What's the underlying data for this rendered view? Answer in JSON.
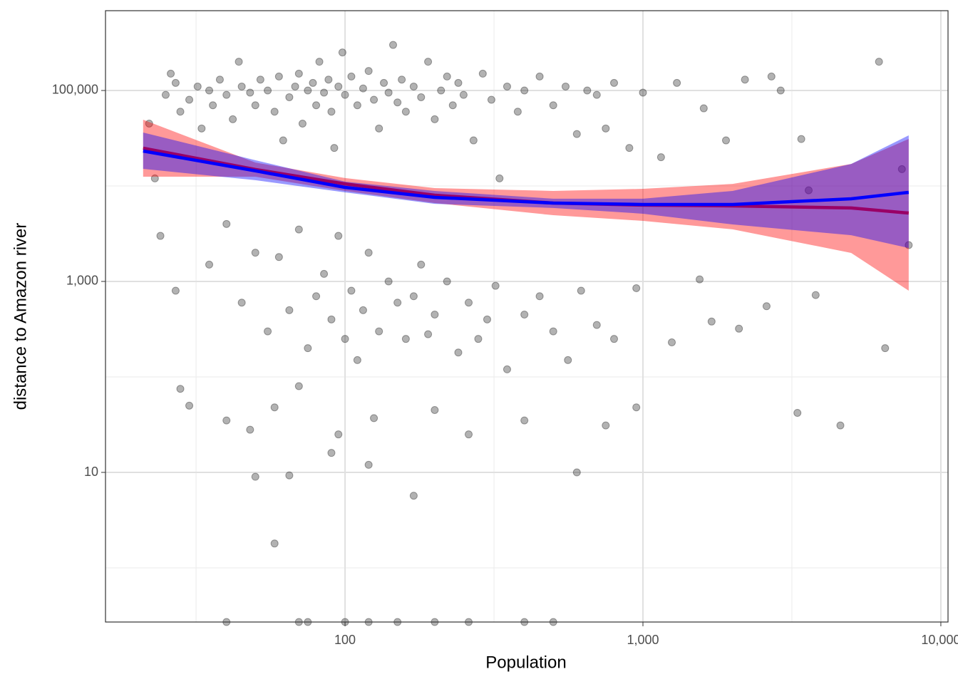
{
  "chart_data": {
    "type": "scatter",
    "x_label": "Population",
    "y_label": "distance to Amazon river",
    "log_x": true,
    "log_y": true,
    "grid": true,
    "xlim": [
      15.7,
      10570
    ],
    "ylim": [
      0.271,
      685000
    ],
    "xticks": [
      100,
      {
        "value": 1000,
        "label": "1,000"
      },
      {
        "value": 10000,
        "label": "10,000"
      }
    ],
    "yticks": [
      10,
      {
        "value": 1000,
        "label": "1,000"
      },
      {
        "value": 100000,
        "label": "100,000"
      }
    ],
    "series": [
      {
        "color": "#000000",
        "x": [
          22,
          23,
          25,
          26,
          27,
          28,
          30,
          32,
          33,
          35,
          36,
          38,
          40,
          42,
          44,
          45,
          48,
          50,
          52,
          55,
          58,
          60,
          62,
          65,
          68,
          70,
          72,
          75,
          78,
          80,
          82,
          85,
          88,
          90,
          92,
          95,
          98,
          100,
          105,
          110,
          115,
          120,
          125,
          130,
          135,
          140,
          145,
          150,
          155,
          160,
          170,
          180,
          190,
          200,
          210,
          220,
          230,
          240,
          250,
          270,
          290,
          310,
          330,
          350,
          380,
          400,
          450,
          500,
          550,
          600,
          650,
          700,
          750,
          800,
          900,
          1000,
          1150,
          1300,
          1600,
          1900,
          2200,
          2700,
          2900,
          3400,
          3600,
          6200,
          7400,
          24,
          27,
          35,
          40,
          45,
          50,
          55,
          60,
          65,
          70,
          75,
          80,
          85,
          90,
          95,
          100,
          105,
          110,
          115,
          120,
          130,
          140,
          150,
          160,
          170,
          180,
          190,
          200,
          220,
          240,
          260,
          280,
          300,
          320,
          350,
          400,
          450,
          500,
          560,
          620,
          700,
          800,
          950,
          1250,
          1550,
          1700,
          2100,
          2600,
          3300,
          3800,
          4600,
          6500,
          7800,
          28,
          30,
          40,
          48,
          50,
          58,
          65,
          70,
          90,
          95,
          120,
          125,
          170,
          200,
          260,
          400,
          600,
          750,
          950,
          58,
          40,
          70,
          75,
          100,
          120,
          150,
          200,
          260,
          400,
          500
        ],
        "values": [
          45000,
          12000,
          90000,
          150000,
          120000,
          60000,
          80000,
          110000,
          40000,
          100000,
          70000,
          130000,
          90000,
          50000,
          200000,
          110000,
          95000,
          70000,
          130000,
          100000,
          60000,
          140000,
          30000,
          85000,
          110000,
          150000,
          45000,
          100000,
          120000,
          70000,
          200000,
          95000,
          130000,
          60000,
          25000,
          110000,
          250000,
          90000,
          140000,
          70000,
          105000,
          160000,
          80000,
          40000,
          120000,
          95000,
          300000,
          75000,
          130000,
          60000,
          110000,
          85000,
          200000,
          50000,
          100000,
          140000,
          70000,
          120000,
          90000,
          30000,
          150000,
          80000,
          12000,
          110000,
          60000,
          100000,
          140000,
          70000,
          110000,
          35000,
          100000,
          90000,
          40000,
          120000,
          25000,
          95000,
          20000,
          120000,
          65000,
          30000,
          130000,
          140000,
          100000,
          31000,
          9000,
          200000,
          15000,
          3000,
          800,
          1500,
          4000,
          600,
          2000,
          300,
          1800,
          500,
          3500,
          200,
          700,
          1200,
          400,
          3000,
          250,
          800,
          150,
          500,
          2000,
          300,
          1000,
          600,
          250,
          700,
          1500,
          280,
          450,
          1000,
          180,
          600,
          250,
          400,
          900,
          120,
          450,
          700,
          300,
          150,
          800,
          350,
          250,
          850,
          230,
          1050,
          380,
          320,
          550,
          42,
          720,
          31,
          200,
          2400,
          75,
          50,
          35,
          28,
          9,
          48,
          9.3,
          80,
          16,
          25,
          12,
          37,
          5.7,
          45,
          25,
          35,
          10,
          31,
          48,
          1.8,
          0,
          0,
          0,
          0,
          0,
          0,
          0,
          0,
          0,
          0
        ]
      },
      {
        "type": "ribbon",
        "color": "#ff0000",
        "x": [
          21,
          50,
          100,
          200,
          500,
          1000,
          2000,
          5000,
          7800
        ],
        "values": [
          24900,
          14900,
          10500,
          8000,
          6620,
          6300,
          6180,
          5880,
          5200
        ],
        "lower": [
          12500,
          12500,
          8870,
          6620,
          4940,
          4310,
          3510,
          1990,
          800
        ],
        "upper": [
          49400,
          17600,
          12100,
          9500,
          8870,
          9330,
          10500,
          17000,
          31100
        ]
      },
      {
        "type": "ribbon",
        "color": "#0000ff",
        "x": [
          21,
          50,
          100,
          200,
          500,
          1000,
          2000,
          5000,
          7800
        ],
        "values": [
          23200,
          14400,
          9660,
          7600,
          6620,
          6400,
          6400,
          7340,
          8570
        ],
        "lower": [
          15100,
          11500,
          8570,
          6500,
          5880,
          5120,
          3950,
          3050,
          2240
        ],
        "upper": [
          36300,
          18600,
          11100,
          8870,
          7350,
          7350,
          8870,
          17000,
          33900
        ]
      }
    ]
  }
}
